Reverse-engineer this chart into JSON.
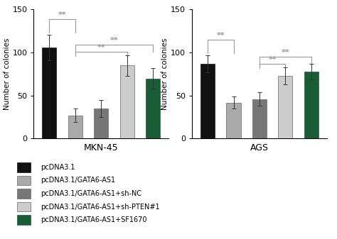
{
  "mkn45": {
    "values": [
      106,
      27,
      35,
      85,
      70
    ],
    "errors": [
      15,
      8,
      10,
      12,
      12
    ]
  },
  "ags": {
    "values": [
      87,
      42,
      46,
      73,
      78
    ],
    "errors": [
      10,
      7,
      8,
      10,
      9
    ]
  },
  "bar_colors": [
    "#111111",
    "#aaaaaa",
    "#777777",
    "#cccccc",
    "#1a5c35"
  ],
  "legend_labels": [
    "pcDNA3.1",
    "pcDNA3.1/GATA6-AS1",
    "pcDNA3.1/GATA6-AS1+sh-NC",
    "pcDNA3.1/GATA6-AS1+sh-PTEN#1",
    "pcDNA3.1/GATA6-AS1+SF1670"
  ],
  "ylabel": "Number of colonies",
  "xlabel_mkn45": "MKN-45",
  "xlabel_ags": "AGS",
  "ylim": [
    0,
    150
  ],
  "yticks": [
    0,
    50,
    100,
    150
  ],
  "bar_width": 0.55,
  "sig_color": "#999999",
  "sig_fontsize": 8
}
